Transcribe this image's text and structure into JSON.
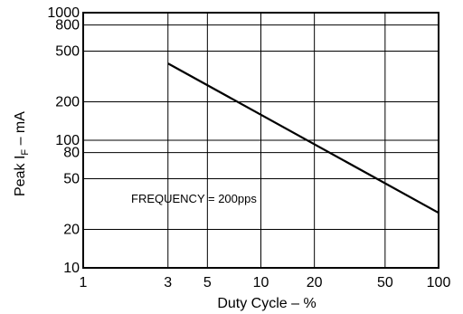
{
  "chart_data": {
    "type": "line",
    "title": "",
    "xlabel": "Duty Cycle – %",
    "ylabel_main": "Peak I",
    "ylabel_sub": "F",
    "ylabel_tail": " – mA",
    "x_scale": "log",
    "y_scale": "log",
    "xlim": [
      1,
      100
    ],
    "ylim": [
      10,
      1000
    ],
    "x_ticks": [
      1,
      3,
      5,
      10,
      20,
      50,
      100
    ],
    "x_tick_labels": [
      "1",
      "3",
      "5",
      "10",
      "20",
      "50",
      "100"
    ],
    "y_ticks": [
      10,
      20,
      50,
      80,
      100,
      200,
      500,
      800,
      1000
    ],
    "y_tick_labels": [
      "10",
      "20",
      "50",
      "80",
      "100",
      "200",
      "500",
      "800",
      "1000"
    ],
    "grid": true,
    "annotation": "FREQUENCY = 200pps",
    "series": [
      {
        "x": [
          3,
          100
        ],
        "y": [
          400,
          27
        ]
      }
    ]
  }
}
